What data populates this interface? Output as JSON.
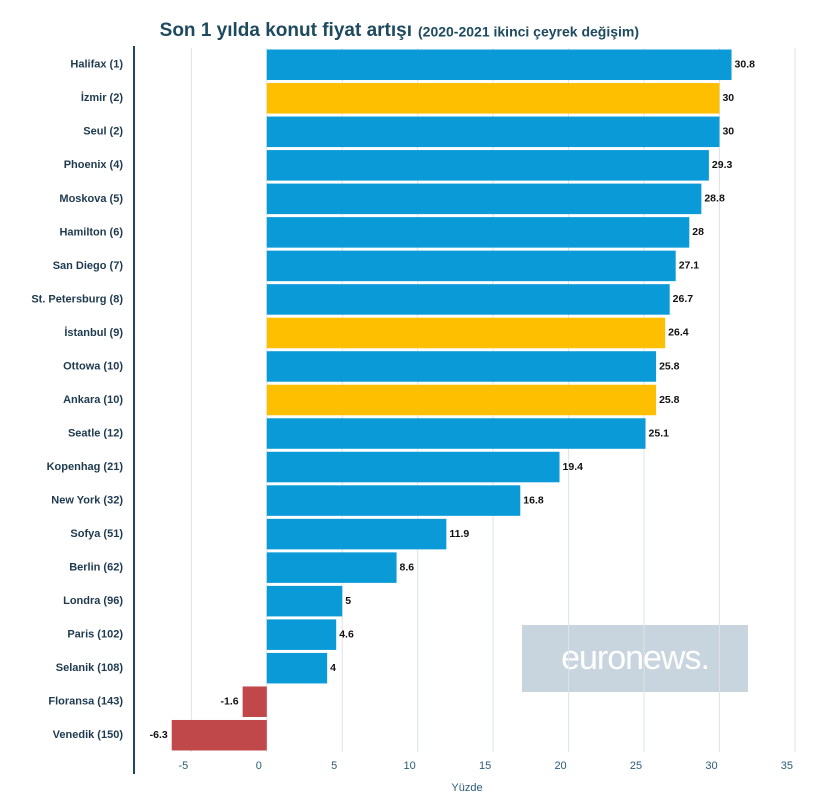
{
  "chart_data": {
    "type": "hbar",
    "title": "Son 1 yılda konut fiyat artışı",
    "subtitle": "(2020-2021 ikinci çeyrek değişim)",
    "x_label": "Yüzde",
    "watermark": "euronews.",
    "categories": [
      "Halifax (1)",
      "İzmir (2)",
      "Seul (2)",
      "Phoenix (4)",
      "Moskova (5)",
      "Hamilton (6)",
      "San Diego (7)",
      "St. Petersburg (8)",
      "İstanbul (9)",
      "Ottowa (10)",
      "Ankara (10)",
      "Seatle (12)",
      "Kopenhag (21)",
      "New York (32)",
      "Sofya (51)",
      "Berlin (62)",
      "Londra (96)",
      "Paris (102)",
      "Selanik (108)",
      "Floransa (143)",
      "Venedik (150)"
    ],
    "values": [
      30.8,
      30,
      30,
      29.3,
      28.8,
      28,
      27.1,
      26.7,
      26.4,
      25.8,
      25.8,
      25.1,
      19.4,
      16.8,
      11.9,
      8.6,
      5,
      4.6,
      4,
      -1.6,
      -6.3
    ],
    "colors": [
      "#0a9ad8",
      "#fdbf00",
      "#0a9ad8",
      "#0a9ad8",
      "#0a9ad8",
      "#0a9ad8",
      "#0a9ad8",
      "#0a9ad8",
      "#fdbf00",
      "#0a9ad8",
      "#fdbf00",
      "#0a9ad8",
      "#0a9ad8",
      "#0a9ad8",
      "#0a9ad8",
      "#0a9ad8",
      "#0a9ad8",
      "#0a9ad8",
      "#0a9ad8",
      "#c0484a",
      "#c0484a"
    ],
    "xlim": [
      -8.8,
      36
    ],
    "xticks": [
      -5,
      0,
      5,
      10,
      15,
      20,
      25,
      30,
      35
    ],
    "grid": true
  }
}
